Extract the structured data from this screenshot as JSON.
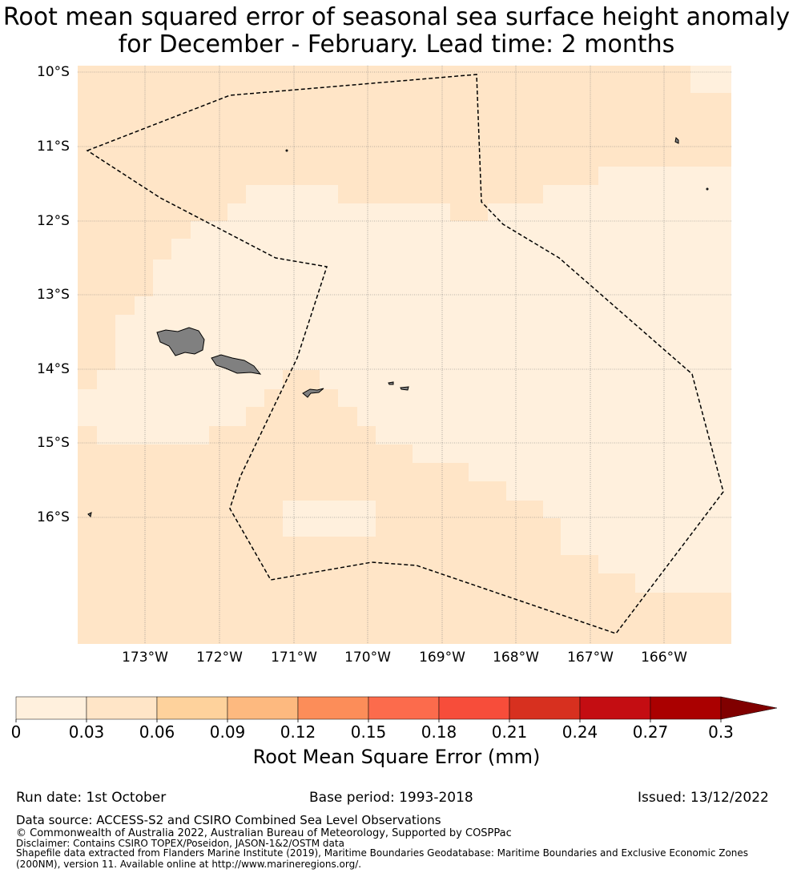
{
  "title": {
    "line1": "Root mean squared error of seasonal sea surface height anomaly",
    "line2": "for December - February. Lead time: 2 months"
  },
  "map": {
    "lat_labels": [
      "10°S",
      "11°S",
      "12°S",
      "13°S",
      "14°S",
      "15°S",
      "16°S"
    ],
    "lon_labels": [
      "173°W",
      "172°W",
      "171°W",
      "170°W",
      "169°W",
      "168°W",
      "167°W",
      "166°W"
    ],
    "eez_boundary": "dashed",
    "land_color": "#808080",
    "grid": "on"
  },
  "chart_data": {
    "type": "heatmap",
    "title": "Root mean squared error of seasonal sea surface height anomaly for December - February. Lead time: 2 months",
    "ylabel": "",
    "xlabel": "",
    "x_range": [
      "173.9°W",
      "165.1°W"
    ],
    "y_range": [
      "17.7°S",
      "9.9°S"
    ],
    "field_classes": [
      "0 - 0.03",
      "0.03 - 0.06"
    ],
    "field_description_classes": {
      "0 - 0.03": "central band from ~12°S to ~15°S and eastern area, plus patch near 16.2°S 170.5°W",
      "0.03 - 0.06": "north, west and south areas"
    }
  },
  "colorbar": {
    "label": "Root Mean Square Error (mm)",
    "ticks": [
      "0",
      "0.03",
      "0.06",
      "0.09",
      "0.12",
      "0.15",
      "0.18",
      "0.21",
      "0.24",
      "0.27",
      "0.3"
    ],
    "colors": [
      "#fff0dd",
      "#ffe5c7",
      "#fed29c",
      "#fdb97f",
      "#fc8d59",
      "#fc6b4c",
      "#f74d3a",
      "#d7301f",
      "#c40d12",
      "#aa0000",
      "#800000"
    ],
    "extend": "max"
  },
  "footer": {
    "run_date": "Run date: 1st October",
    "base_period": "Base period: 1993-2018",
    "issued": "Issued: 13/12/2022",
    "data_source": "Data source: ACCESS-S2 and CSIRO Combined Sea Level Observations",
    "copyright": "© Commonwealth of Australia 2022, Australian Bureau of Meteorology, Supported by COSPPac",
    "disclaimer": "Disclaimer: Contains CSIRO TOPEX/Poseidon, JASON-1&2/OSTM data",
    "shapefile": "Shapefile data extracted from Flanders Marine Institute (2019), Maritime Boundaries Geodatabase: Maritime Boundaries and Exclusive Economic Zones (200NM), version 11. Available online at http://www.marineregions.org/."
  }
}
